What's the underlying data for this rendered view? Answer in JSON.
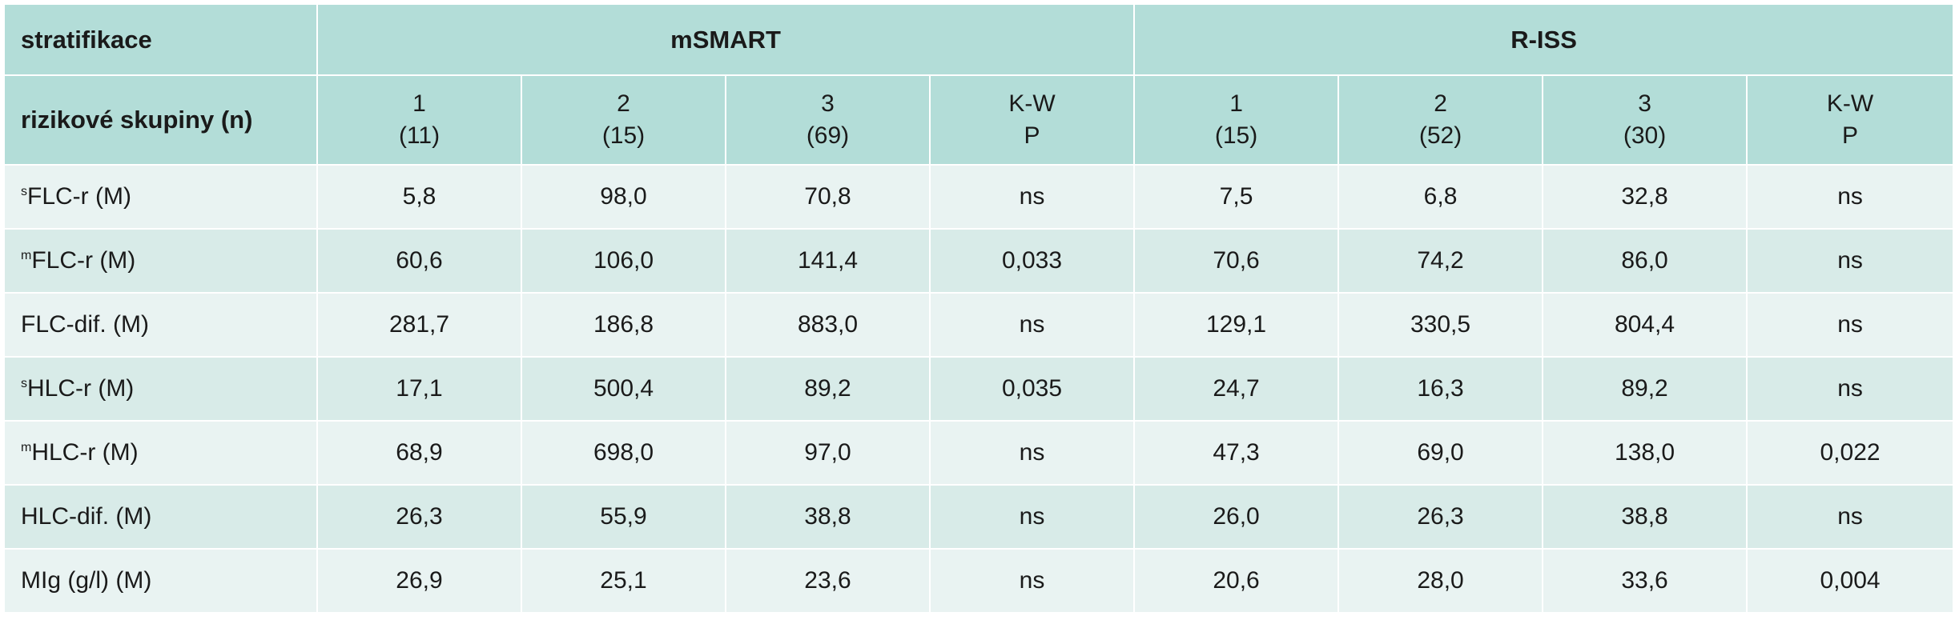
{
  "header": {
    "stratification_label": "stratifikace",
    "group_msmart": "mSMART",
    "group_riss": "R-ISS",
    "risk_groups_label": "rizikové skupiny (n)",
    "msmart_cols": [
      {
        "line1": "1",
        "line2": "(11)"
      },
      {
        "line1": "2",
        "line2": "(15)"
      },
      {
        "line1": "3",
        "line2": "(69)"
      },
      {
        "line1": "K-W",
        "line2": "P"
      }
    ],
    "riss_cols": [
      {
        "line1": "1",
        "line2": "(15)"
      },
      {
        "line1": "2",
        "line2": "(52)"
      },
      {
        "line1": "3",
        "line2": "(30)"
      },
      {
        "line1": "K-W",
        "line2": "P"
      }
    ]
  },
  "rows": [
    {
      "sup": "s",
      "label": "FLC-r (M)",
      "cells": [
        "5,8",
        "98,0",
        "70,8",
        "ns",
        "7,5",
        "6,8",
        "32,8",
        "ns"
      ]
    },
    {
      "sup": "m",
      "label": "FLC-r (M)",
      "cells": [
        "60,6",
        "106,0",
        "141,4",
        "0,033",
        "70,6",
        "74,2",
        "86,0",
        "ns"
      ]
    },
    {
      "sup": "",
      "label": "FLC-dif. (M)",
      "cells": [
        "281,7",
        "186,8",
        "883,0",
        "ns",
        "129,1",
        "330,5",
        "804,4",
        "ns"
      ]
    },
    {
      "sup": "s",
      "label": "HLC-r (M)",
      "cells": [
        "17,1",
        "500,4",
        "89,2",
        "0,035",
        "24,7",
        "16,3",
        "89,2",
        "ns"
      ]
    },
    {
      "sup": "m",
      "label": "HLC-r (M)",
      "cells": [
        "68,9",
        "698,0",
        "97,0",
        "ns",
        "47,3",
        "69,0",
        "138,0",
        "0,022"
      ]
    },
    {
      "sup": "",
      "label": "HLC-dif. (M)",
      "cells": [
        "26,3",
        "55,9",
        "38,8",
        "ns",
        "26,0",
        "26,3",
        "38,8",
        "ns"
      ]
    },
    {
      "sup": "",
      "label": "MIg (g/l) (M)",
      "cells": [
        "26,9",
        "25,1",
        "23,6",
        "ns",
        "20,6",
        "28,0",
        "33,6",
        "0,004"
      ]
    }
  ]
}
